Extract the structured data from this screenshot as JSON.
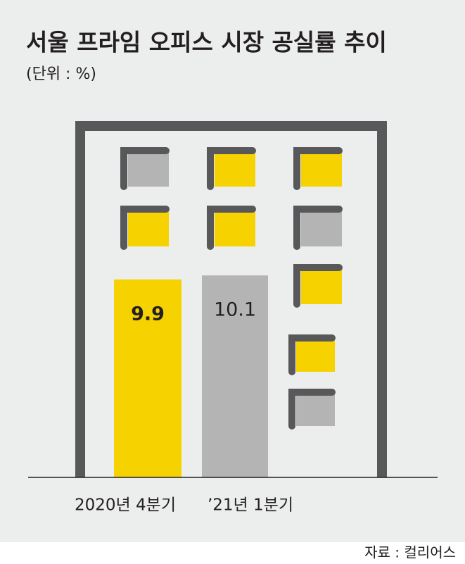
{
  "chart_data": {
    "type": "bar",
    "title": "서울 프라임 오피스 시장 공실률 추이",
    "subtitle": "(단위 : %)",
    "categories": [
      "2020년 4분기",
      "’21년 1분기"
    ],
    "values": [
      9.9,
      10.1
    ],
    "colors": [
      "#f6d200",
      "#b4b4b4"
    ],
    "source": "자료 : 컬리어스"
  }
}
